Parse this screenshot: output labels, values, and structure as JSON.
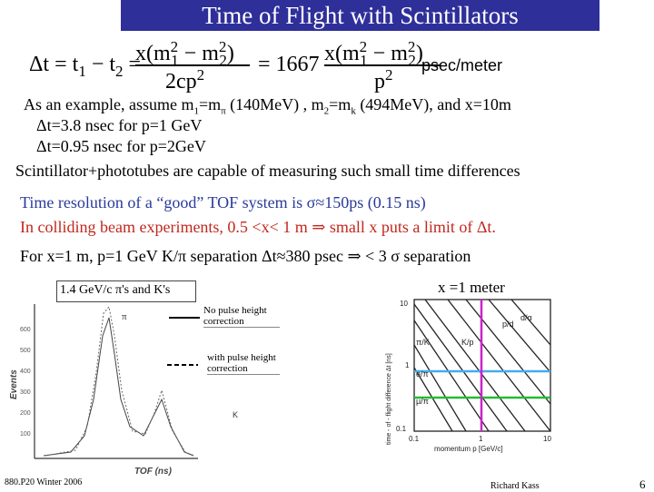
{
  "slide": {
    "title": "Time of Flight with Scintillators",
    "equation": {
      "lhs": "Δt = t",
      "sub1": "1",
      "minus": " − t",
      "sub2": "2",
      "eq": "=",
      "num1": "x(m",
      "num1b": " − m",
      "num1c": ")",
      "den1": "2cp",
      "eq2": "= 1667",
      "num2": "x(m",
      "num2b": " − m",
      "num2c": ")",
      "den2": "p",
      "unit": "psec/meter",
      "sup": "2",
      "s1": "1",
      "s2": "2"
    },
    "lines": {
      "l1a": "As an example, assume m",
      "l1b": "=m",
      "l1c": " (140MeV) , m",
      "l1d": "=m",
      "l1e": " (494MeV), and x=10m",
      "sub1": "1",
      "subpi": "π",
      "sub2": "2",
      "subk": "k",
      "l2": "Δt=3.8 nsec for p=1 GeV",
      "l3": "Δt=0.95 nsec for p=2GeV",
      "l4": "Scintillator+phototubes are capable of measuring such small time differences",
      "l5": "Time resolution of a “good” TOF system is σ≈150ps (0.15 ns)",
      "l6": "In colliding beam experiments, 0.5 <x< 1 m ⇒ small x puts a limit of Δt.",
      "l7": "For x=1 m, p=1 GeV K/π separation Δt≈380 psec ⇒ < 3 σ separation"
    },
    "left_plot": {
      "caption": "1.4 GeV/c π's and K's",
      "legend_solid": "No pulse height correction",
      "legend_dashed": "with pulse height correction",
      "ylabel": "Events",
      "xlabel": "TOF (ns)",
      "peak_pi": "π",
      "peak_k": "K",
      "yticks": [
        "600",
        "500",
        "400",
        "300",
        "200",
        "100"
      ]
    },
    "right_plot": {
      "caption": "x =1 meter",
      "ylabel": "time - of - flight difference Δt [ns]",
      "xlabel": "momentum p [GeV/c]",
      "xticks": [
        "0.1",
        "1",
        "10"
      ],
      "yticks": [
        "10",
        "1",
        "0.1"
      ],
      "labels": [
        "π/K",
        "K/p",
        "p/d",
        "d/α",
        "e/π",
        "μ/π"
      ],
      "colors": {
        "vertical": "#cc22cc",
        "upper": "#44aaee",
        "lower": "#22bb33"
      }
    },
    "footer": {
      "course": "880.P20 Winter 2006",
      "author": "Richard Kass",
      "page": "6"
    }
  }
}
